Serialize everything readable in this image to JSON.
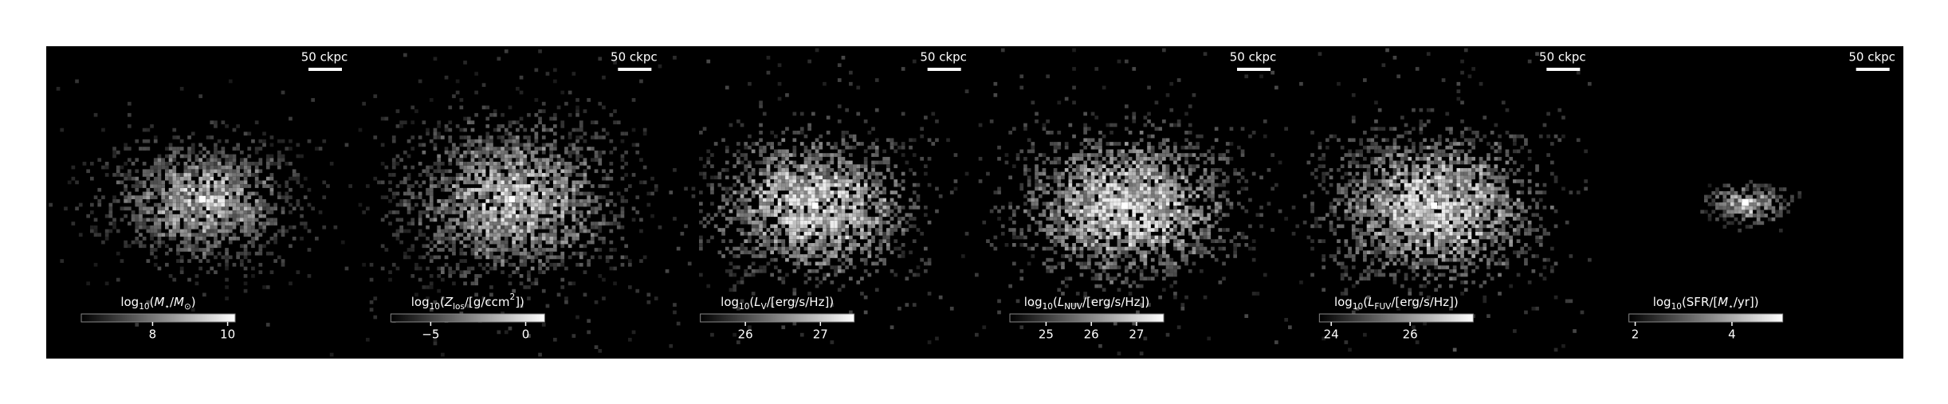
{
  "chart_data": [
    {
      "type": "image",
      "scalebar": "50 ckpc",
      "colorbar": {
        "label": [
          {
            "text": "log"
          },
          {
            "text": "10",
            "sub": true
          },
          {
            "text": "("
          },
          {
            "text": "M",
            "italic": true
          },
          {
            "text": "⋆",
            "sub": true
          },
          {
            "text": "/"
          },
          {
            "text": "M",
            "italic": true
          },
          {
            "text": "⊙",
            "sub": true
          },
          {
            "text": ")"
          }
        ],
        "clim": [
          6.1,
          10.2
        ],
        "ticks": [
          8,
          10
        ]
      }
    },
    {
      "type": "image",
      "scalebar": "50 ckpc",
      "colorbar": {
        "label": [
          {
            "text": "log"
          },
          {
            "text": "10",
            "sub": true
          },
          {
            "text": "("
          },
          {
            "text": "Z",
            "italic": true
          },
          {
            "text": "los",
            "sub": true
          },
          {
            "text": "/[g/ccm"
          },
          {
            "text": "2",
            "sup": true
          },
          {
            "text": "])"
          }
        ],
        "clim": [
          -7.1,
          1.0
        ],
        "ticks": [
          {
            "value": -5,
            "label": "−5"
          },
          0
        ]
      }
    },
    {
      "type": "image",
      "scalebar": "50 ckpc",
      "colorbar": {
        "label": [
          {
            "text": "log"
          },
          {
            "text": "10",
            "sub": true
          },
          {
            "text": "("
          },
          {
            "text": "L",
            "italic": true
          },
          {
            "text": "V",
            "sub": true
          },
          {
            "text": "/[erg/s/Hz])"
          }
        ],
        "clim": [
          25.4,
          27.45
        ],
        "ticks": [
          26,
          27
        ]
      }
    },
    {
      "type": "image",
      "scalebar": "50 ckpc",
      "colorbar": {
        "label": [
          {
            "text": "log"
          },
          {
            "text": "10",
            "sub": true
          },
          {
            "text": "("
          },
          {
            "text": "L",
            "italic": true
          },
          {
            "text": "NUV",
            "sub": true
          },
          {
            "text": "/[erg/s/Hz])"
          }
        ],
        "clim": [
          24.2,
          27.6
        ],
        "ticks": [
          25,
          26,
          27
        ]
      }
    },
    {
      "type": "image",
      "scalebar": "50 ckpc",
      "colorbar": {
        "label": [
          {
            "text": "log"
          },
          {
            "text": "10",
            "sub": true
          },
          {
            "text": "("
          },
          {
            "text": "L",
            "italic": true
          },
          {
            "text": "FUV",
            "sub": true
          },
          {
            "text": "/[erg/s/Hz])"
          }
        ],
        "clim": [
          23.7,
          27.6
        ],
        "ticks": [
          24,
          26
        ]
      }
    },
    {
      "type": "image",
      "scalebar": "50 ckpc",
      "colorbar": {
        "label": [
          {
            "text": "log"
          },
          {
            "text": "10",
            "sub": true
          },
          {
            "text": "(SFR/["
          },
          {
            "text": "M",
            "italic": true
          },
          {
            "text": "⋆",
            "sub": true
          },
          {
            "text": "/yr])"
          }
        ],
        "clim": [
          1.87,
          5.05
        ],
        "ticks": [
          2,
          4
        ]
      }
    }
  ]
}
